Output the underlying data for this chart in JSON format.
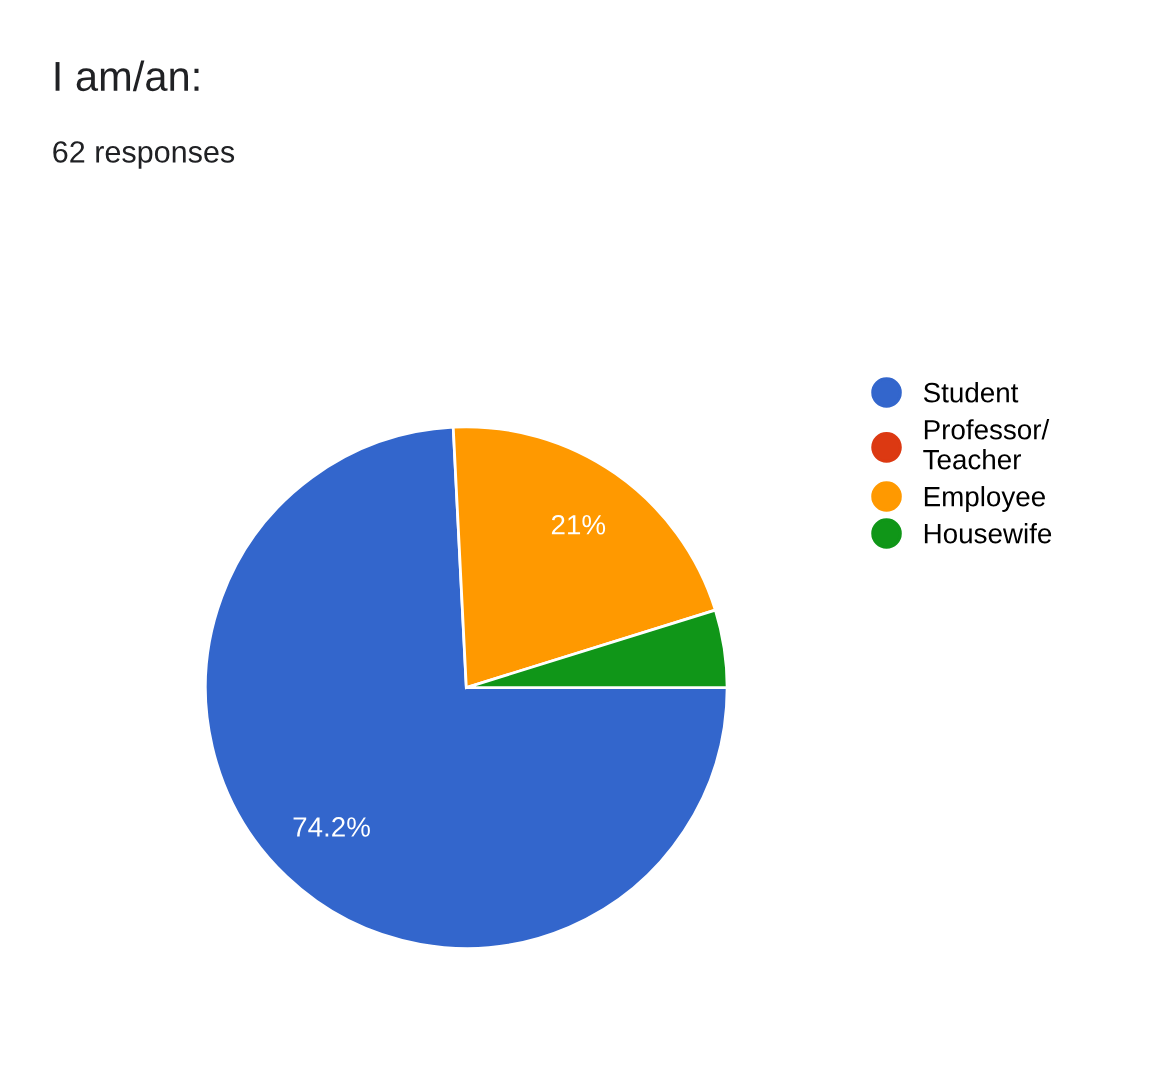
{
  "chart_data": {
    "type": "pie",
    "title": "I am/an:",
    "subtitle": "62 responses",
    "categories": [
      "Student",
      "Professor/\nTeacher",
      "Employee",
      "Housewife"
    ],
    "values": [
      74.2,
      0,
      21,
      4.8
    ],
    "colors": [
      "#3366cc",
      "#dc3912",
      "#ff9900",
      "#109618"
    ],
    "value_labels": [
      "74.2%",
      null,
      "21%",
      null
    ],
    "legend": "right"
  }
}
